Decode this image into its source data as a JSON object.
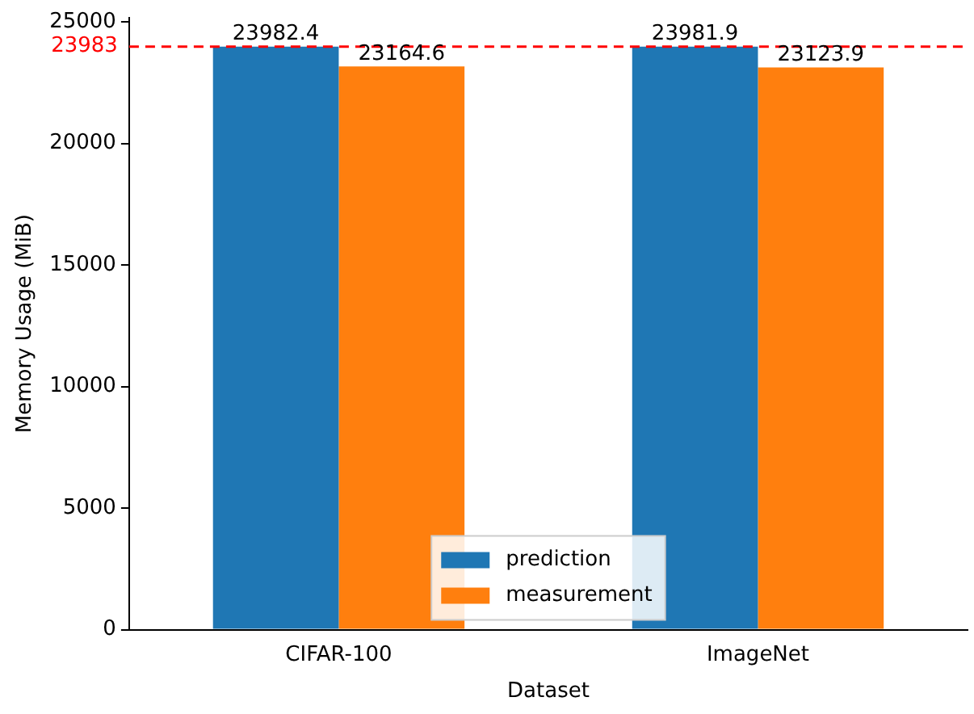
{
  "chart_data": {
    "type": "bar",
    "xlabel": "Dataset",
    "ylabel": "Memory Usage (MiB)",
    "categories": [
      "CIFAR-100",
      "ImageNet"
    ],
    "series": [
      {
        "name": "prediction",
        "color": "#1f77b4",
        "values": [
          23982.4,
          23981.9
        ]
      },
      {
        "name": "measurement",
        "color": "#ff7f0e",
        "values": [
          23164.6,
          23123.9
        ]
      }
    ],
    "ylim": [
      0,
      25181
    ],
    "yticks": [
      0,
      5000,
      10000,
      15000,
      20000,
      25000
    ],
    "ref_lines": [
      {
        "axis": "y",
        "value": 23983,
        "label": "23983",
        "color": "#ff0000",
        "line_style": "dashed"
      }
    ],
    "data_labels": true,
    "legend": "bottom",
    "grid": false
  }
}
